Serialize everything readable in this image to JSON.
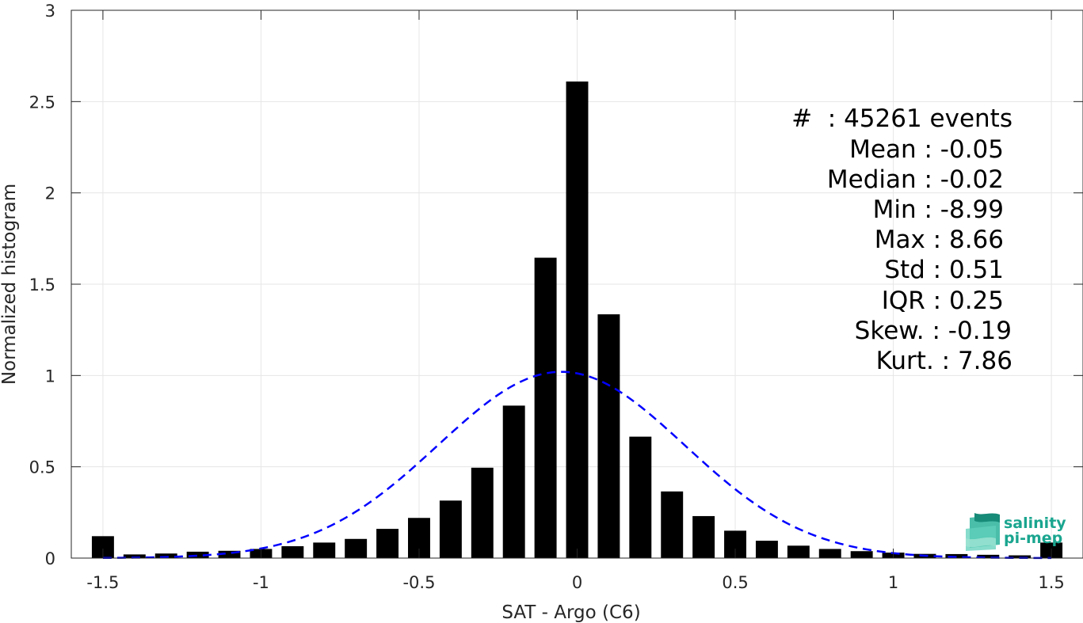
{
  "chart_data": {
    "type": "bar",
    "title": "",
    "xlabel": "SAT - Argo (C6)",
    "ylabel": "Normalized histogram",
    "xlim": [
      -1.6,
      1.6
    ],
    "ylim": [
      0,
      3
    ],
    "xticks": [
      -1.5,
      -1,
      -0.5,
      0,
      0.5,
      1,
      1.5
    ],
    "xtick_labels": [
      "-1.5",
      "-1",
      "-0.5",
      "0",
      "0.5",
      "1",
      "1.5"
    ],
    "yticks": [
      0,
      0.5,
      1,
      1.5,
      2,
      2.5,
      3
    ],
    "ytick_labels": [
      "0",
      "0.5",
      "1",
      "1.5",
      "2",
      "2.5",
      "3"
    ],
    "grid": true,
    "bar_color": "#000000",
    "bins": [
      -1.5,
      -1.4,
      -1.3,
      -1.2,
      -1.1,
      -1.0,
      -0.9,
      -0.8,
      -0.7,
      -0.6,
      -0.5,
      -0.4,
      -0.3,
      -0.2,
      -0.1,
      0.0,
      0.1,
      0.2,
      0.3,
      0.4,
      0.5,
      0.6,
      0.7,
      0.8,
      0.9,
      1.0,
      1.1,
      1.2,
      1.3,
      1.4,
      1.5
    ],
    "values": [
      0.12,
      0.02,
      0.025,
      0.035,
      0.04,
      0.05,
      0.065,
      0.085,
      0.105,
      0.16,
      0.22,
      0.315,
      0.495,
      0.835,
      1.645,
      2.61,
      1.335,
      0.665,
      0.365,
      0.23,
      0.15,
      0.095,
      0.068,
      0.05,
      0.038,
      0.03,
      0.023,
      0.022,
      0.018,
      0.015,
      0.085
    ],
    "fit_curve": {
      "type": "gaussian",
      "mean": -0.05,
      "std": 0.39,
      "peak": 1.02,
      "color": "#0000ff",
      "style": "dashed"
    },
    "stats_lines": [
      "#  : 45261 events",
      "Mean : -0.05",
      "Median : -0.02",
      "Min : -8.99",
      "Max : 8.66",
      "Std : 0.51",
      "IQR : 0.25",
      "Skew. : -0.19",
      "Kurt. : 7.86"
    ]
  },
  "logo": {
    "line1": "salinity",
    "line2": "pi-mep",
    "color": "#1aa58f"
  }
}
